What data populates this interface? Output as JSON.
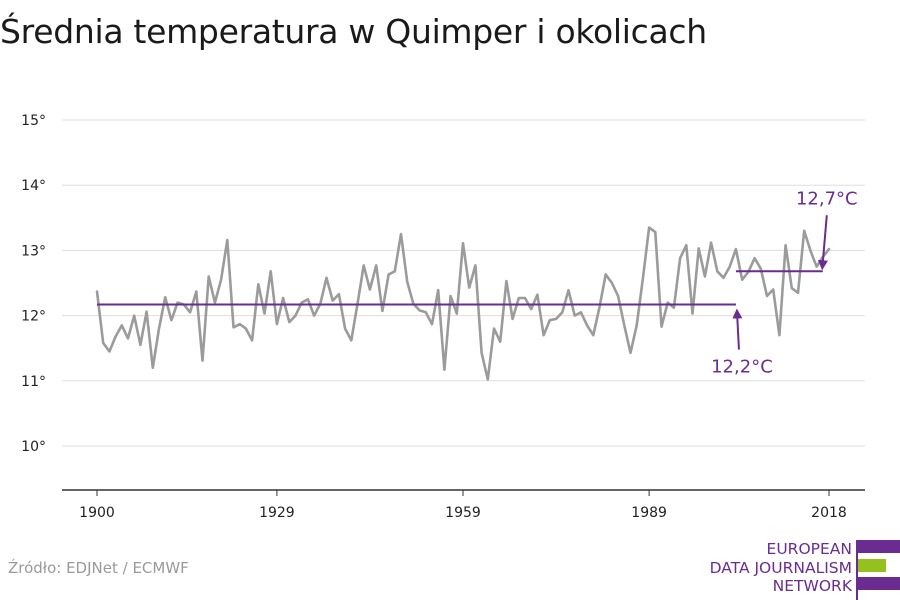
{
  "title": "Średnia temperatura w Quimper i okolicach",
  "source": "Źródło: EDJNet / ECMWF",
  "logo": {
    "lines": [
      "EUROPEAN",
      "DATA JOURNALISM",
      "NETWORK"
    ],
    "colors": {
      "purple": "#6b2c91",
      "green": "#95c11f"
    }
  },
  "colors": {
    "series": "#9b9b9b",
    "average": "#6b2c91",
    "annotation": "#6b2c91",
    "grid": "#dddddd",
    "axis": "#333333"
  },
  "chart_data": {
    "type": "line",
    "title": "Średnia temperatura w Quimper i okolicach",
    "xlabel": "",
    "ylabel": "",
    "x_ticks": [
      1900,
      1929,
      1959,
      1989,
      2018
    ],
    "y_ticks": [
      {
        "value": 10,
        "label": "10°"
      },
      {
        "value": 11,
        "label": "11°"
      },
      {
        "value": 12,
        "label": "12°"
      },
      {
        "value": 13,
        "label": "13°"
      },
      {
        "value": 14,
        "label": "14°"
      },
      {
        "value": 15,
        "label": "15°"
      }
    ],
    "xlim": [
      1900,
      2018
    ],
    "ylim": [
      9.4,
      15.3
    ],
    "grid": true,
    "series": [
      {
        "x": [
          1900,
          1901,
          1902,
          1903,
          1904,
          1905,
          1906,
          1907,
          1908,
          1909,
          1910,
          1911,
          1912,
          1913,
          1914,
          1915,
          1916,
          1917,
          1918,
          1919,
          1920,
          1921,
          1922,
          1923,
          1924,
          1925,
          1926,
          1927,
          1928,
          1929,
          1930,
          1931,
          1932,
          1933,
          1934,
          1935,
          1936,
          1937,
          1938,
          1939,
          1940,
          1941,
          1942,
          1943,
          1944,
          1945,
          1946,
          1947,
          1948,
          1949,
          1950,
          1951,
          1952,
          1953,
          1954,
          1955,
          1956,
          1957,
          1958,
          1959,
          1960,
          1961,
          1962,
          1963,
          1964,
          1965,
          1966,
          1967,
          1968,
          1969,
          1970,
          1971,
          1972,
          1973,
          1974,
          1975,
          1976,
          1977,
          1978,
          1979,
          1980,
          1981,
          1982,
          1983,
          1984,
          1985,
          1986,
          1987,
          1988,
          1989,
          1990,
          1991,
          1992,
          1993,
          1994,
          1995,
          1996,
          1997,
          1998,
          1999,
          2000,
          2001,
          2002,
          2003,
          2004,
          2005,
          2006,
          2007,
          2008,
          2009,
          2010,
          2011,
          2012,
          2013,
          2014,
          2015,
          2016,
          2017,
          2018
        ],
        "values": [
          12.37,
          11.58,
          11.45,
          11.68,
          11.85,
          11.65,
          12.0,
          11.55,
          12.06,
          11.2,
          11.8,
          12.28,
          11.93,
          12.2,
          12.17,
          12.05,
          12.37,
          11.31,
          12.6,
          12.2,
          12.55,
          13.16,
          11.82,
          11.87,
          11.8,
          11.62,
          12.48,
          12.03,
          12.68,
          11.87,
          12.27,
          11.9,
          12.0,
          12.2,
          12.25,
          12.0,
          12.18,
          12.58,
          12.23,
          12.33,
          11.8,
          11.62,
          12.18,
          12.77,
          12.4,
          12.77,
          12.07,
          12.63,
          12.68,
          13.25,
          12.52,
          12.18,
          12.08,
          12.05,
          11.87,
          12.39,
          11.17,
          12.3,
          12.03,
          13.11,
          12.43,
          12.77,
          11.43,
          11.02,
          11.8,
          11.6,
          12.53,
          11.95,
          12.27,
          12.27,
          12.1,
          12.32,
          11.7,
          11.93,
          11.95,
          12.05,
          12.39,
          12.0,
          12.05,
          11.85,
          11.7,
          12.13,
          12.63,
          12.5,
          12.3,
          11.85,
          11.43,
          11.85,
          12.57,
          13.35,
          13.28,
          11.83,
          12.2,
          12.12,
          12.88,
          13.08,
          12.03,
          13.03,
          12.6,
          13.12,
          12.68,
          12.58,
          12.75,
          13.02,
          12.55,
          12.67,
          12.88,
          12.72,
          12.3,
          12.4,
          11.7,
          13.08,
          12.42,
          12.35,
          13.3,
          13.0,
          12.75,
          12.9,
          13.02
        ]
      }
    ],
    "reference_lines": [
      {
        "x_start": 1900,
        "x_end": 2003,
        "value": 12.17
      },
      {
        "x_start": 2003,
        "x_end": 2017,
        "value": 12.68
      }
    ],
    "annotations": [
      {
        "text": "12,2°C",
        "x": 2003,
        "y": 12.17
      },
      {
        "text": "12,7°C",
        "x": 2017,
        "y": 12.68
      }
    ]
  }
}
